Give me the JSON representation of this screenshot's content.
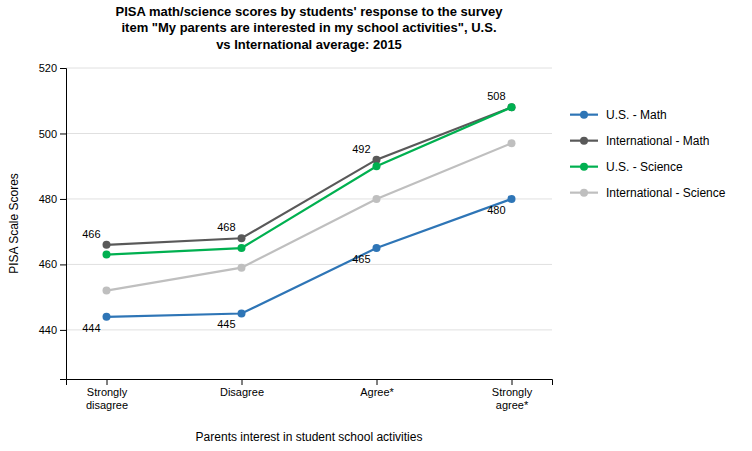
{
  "chart_data": {
    "type": "line",
    "title": "PISA math/science scores by students' response to the survey\nitem \"My parents are interested in my school activities\", U.S.\nvs International average: 2015",
    "x_label": "Parents interest in student school activities",
    "y_label": "PISA Scale Scores",
    "categories": [
      "Strongly\ndisagree",
      "Disagree",
      "Agree*",
      "Strongly\nagree*"
    ],
    "series": [
      {
        "name": "U.S. - Math",
        "color": "#2e75b6",
        "marker": "circle",
        "values": [
          444,
          445,
          465,
          480
        ],
        "data_labels": true
      },
      {
        "name": "International - Math",
        "color": "#595959",
        "marker": "circle",
        "values": [
          466,
          468,
          492,
          508
        ],
        "data_labels": true
      },
      {
        "name": "U.S. - Science",
        "color": "#00b050",
        "marker": "circle",
        "values": [
          463,
          465,
          490,
          508
        ]
      },
      {
        "name": "International - Science",
        "color": "#bfbfbf",
        "marker": "circle",
        "values": [
          452,
          459,
          480,
          497
        ]
      }
    ],
    "ylim": [
      425,
      520
    ],
    "yticks": [
      440,
      460,
      480,
      500,
      520
    ],
    "grid": true,
    "legend": "right"
  }
}
